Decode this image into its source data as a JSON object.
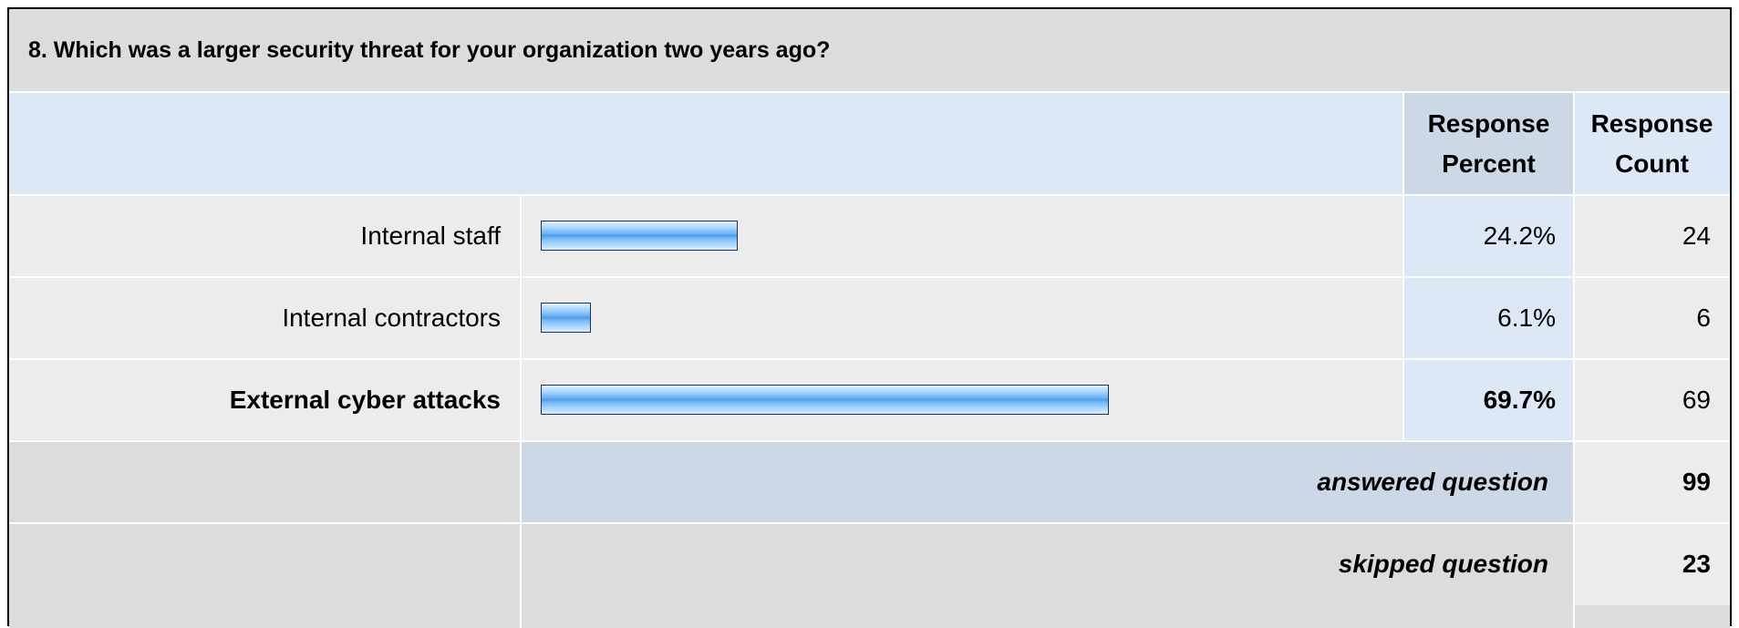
{
  "question": {
    "title": "8. Which was a larger security threat for your organization two years ago?"
  },
  "header": {
    "percent_label": "Response Percent",
    "count_label": "Response Count"
  },
  "chart_data": {
    "type": "bar",
    "orientation": "horizontal",
    "categories": [
      "Internal staff",
      "Internal contractors",
      "External cyber attacks"
    ],
    "series": [
      {
        "name": "Response Percent",
        "values": [
          24.2,
          6.1,
          69.7
        ]
      },
      {
        "name": "Response Count",
        "values": [
          24,
          6,
          69
        ]
      }
    ],
    "xlim": [
      0,
      100
    ]
  },
  "rows": [
    {
      "label": "Internal staff",
      "percent": "24.2%",
      "count": "24",
      "value": 24.2,
      "emphasis": false
    },
    {
      "label": "Internal contractors",
      "percent": "6.1%",
      "count": "6",
      "value": 6.1,
      "emphasis": false
    },
    {
      "label": "External cyber attacks",
      "percent": "69.7%",
      "count": "69",
      "value": 69.7,
      "emphasis": true
    }
  ],
  "summary": {
    "answered_label": "answered question",
    "answered_value": "99",
    "skipped_label": "skipped question",
    "skipped_value": "23"
  },
  "colors": {
    "bar_border": "#1f3350",
    "bar_fill_mid": "#4f9de8",
    "header_blue": "#dce8f6",
    "header_col_blue": "#ccd8e5",
    "row_gray": "#ececec",
    "summary_gray": "#dcdcdc"
  }
}
